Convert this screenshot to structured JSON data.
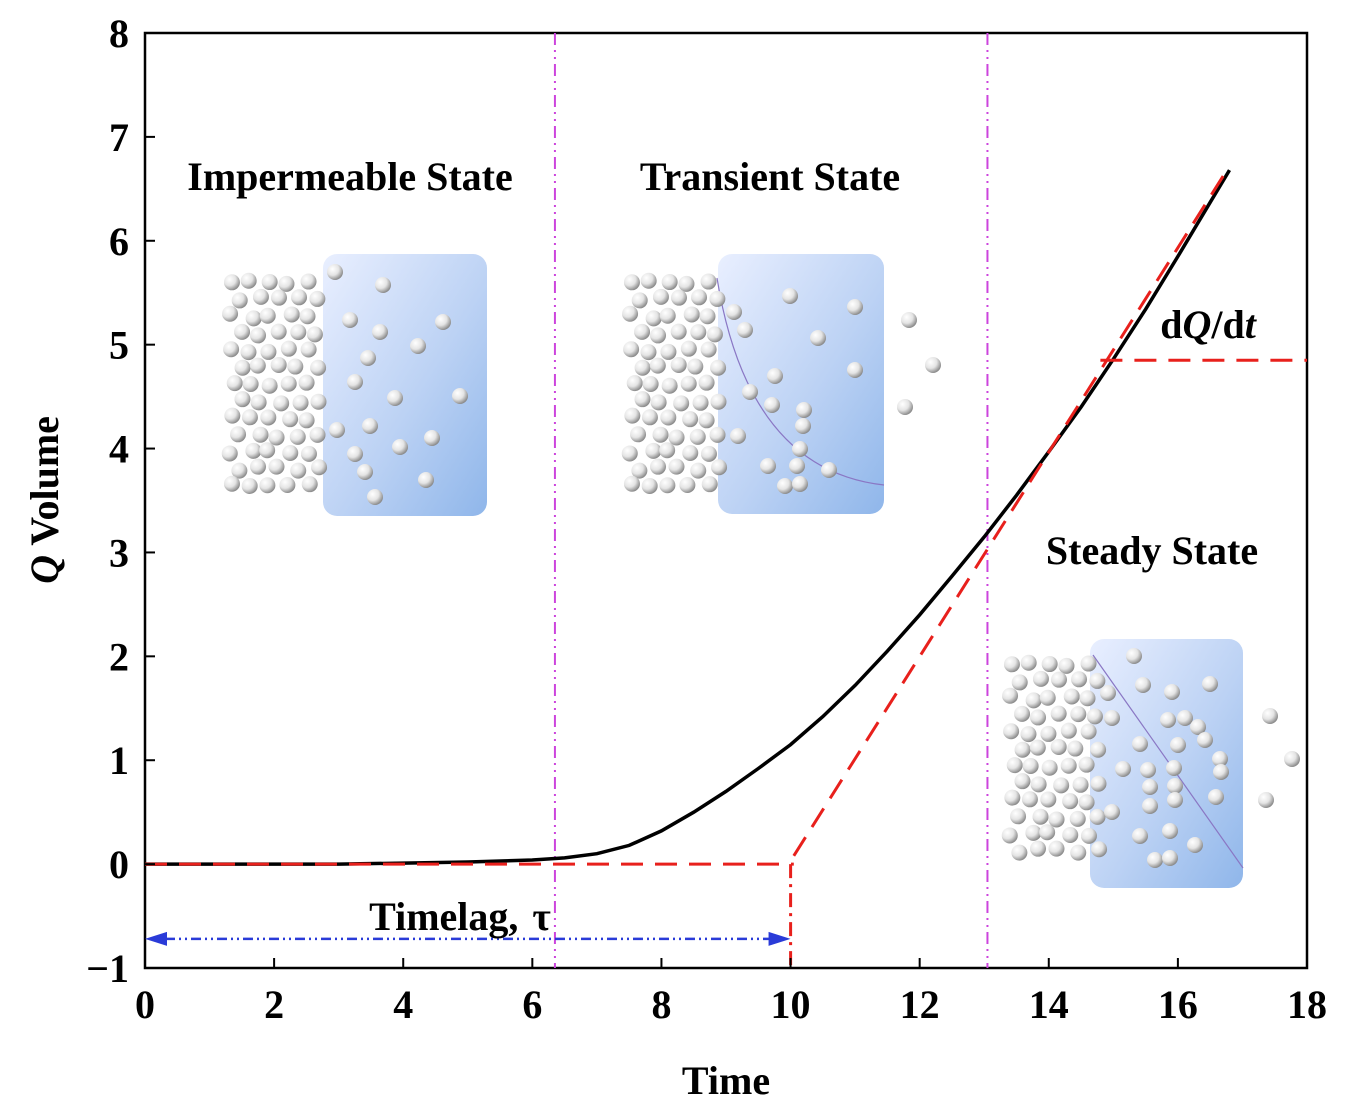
{
  "chart_data": {
    "type": "line",
    "title": "",
    "xlabel": "Time",
    "ylabel_symbol": "Q",
    "ylabel_text": " Volume",
    "xlim": [
      0,
      18
    ],
    "ylim": [
      -1,
      8
    ],
    "xticks": [
      0,
      2,
      4,
      6,
      8,
      10,
      12,
      14,
      16,
      18
    ],
    "yticks": [
      -1,
      0,
      1,
      2,
      3,
      4,
      5,
      6,
      7,
      8
    ],
    "ytick_labels": [
      "−1",
      "0",
      "1",
      "2",
      "3",
      "4",
      "5",
      "6",
      "7",
      "8"
    ],
    "grid": false,
    "series": [
      {
        "name": "Q(t) permeation curve",
        "color": "#000000",
        "x": [
          0,
          1,
          2,
          3,
          4,
          5,
          6,
          6.5,
          7,
          7.5,
          8,
          8.5,
          9,
          9.5,
          10,
          10.5,
          11,
          11.5,
          12,
          12.5,
          13,
          13.5,
          14,
          14.5,
          15,
          15.5,
          16,
          16.5,
          16.8
        ],
        "y": [
          0,
          0,
          0,
          0,
          0.01,
          0.02,
          0.04,
          0.06,
          0.1,
          0.18,
          0.32,
          0.5,
          0.7,
          0.92,
          1.15,
          1.42,
          1.72,
          2.05,
          2.4,
          2.77,
          3.15,
          3.55,
          3.97,
          4.4,
          4.86,
          5.34,
          5.85,
          6.37,
          6.68
        ]
      },
      {
        "name": "steady-state asymptote",
        "color": "#e8201c",
        "style": "dashed",
        "x": [
          10.05,
          16.8
        ],
        "y": [
          0.08,
          6.72
        ]
      },
      {
        "name": "zero baseline",
        "color": "#e8201c",
        "style": "dashed",
        "x": [
          0,
          10.05
        ],
        "y": [
          0,
          0
        ]
      },
      {
        "name": "dQ/dt level line",
        "color": "#e8201c",
        "style": "dashed",
        "x": [
          14.8,
          18
        ],
        "y": [
          4.85,
          4.85
        ]
      },
      {
        "name": "timelag marker",
        "color": "#e8201c",
        "style": "dashdot",
        "x": [
          10,
          10
        ],
        "y": [
          0,
          -1
        ]
      }
    ],
    "vlines": [
      {
        "x": 6.35,
        "color": "#cc44dd",
        "style": "dashdot"
      },
      {
        "x": 13.05,
        "color": "#cc44dd",
        "style": "dashdot"
      }
    ],
    "timelag_arrow": {
      "x_from": 0,
      "x_to": 10,
      "y": -0.72,
      "color": "#2a3bd8"
    },
    "annotations": {
      "impermeable": "Impermeable State",
      "transient": "Transient State",
      "steady": "Steady State",
      "timelag": "Timelag,",
      "tau": "τ",
      "dqdt_d1": "d",
      "dqdt_q": "Q",
      "dqdt_slash": "/d",
      "dqdt_t": "t"
    }
  }
}
